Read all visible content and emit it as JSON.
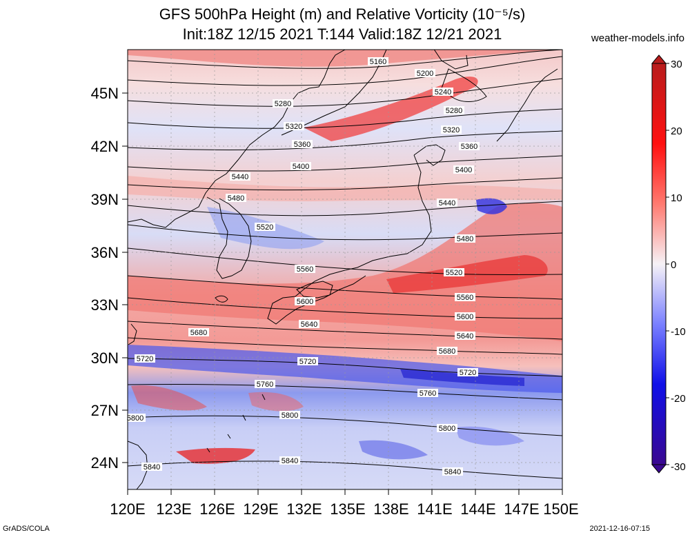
{
  "header": {
    "title_line1": "GFS 500hPa Height (m) and Relative Vorticity (10⁻⁵/s)",
    "title_line2": "Init:18Z 12/15 2021 T:144 Valid:18Z 12/21 2021",
    "site": "weather-models.info"
  },
  "footer": {
    "left": "GrADS/COLA",
    "right": "2021-12-16-07:15"
  },
  "map": {
    "lon_ticks": [
      "120E",
      "123E",
      "126E",
      "129E",
      "132E",
      "135E",
      "138E",
      "141E",
      "144E",
      "147E",
      "150E"
    ],
    "lat_ticks": [
      "45N",
      "42N",
      "39N",
      "36N",
      "33N",
      "30N",
      "27N",
      "24N"
    ],
    "contour_labels": [
      "5160",
      "5200",
      "5240",
      "5280",
      "5280",
      "5320",
      "5320",
      "5360",
      "5360",
      "5400",
      "5400",
      "5440",
      "5440",
      "5480",
      "5480",
      "5520",
      "5520",
      "5560",
      "5560",
      "5600",
      "5600",
      "5640",
      "5640",
      "5680",
      "5680",
      "5720",
      "5720",
      "5720",
      "5760",
      "5760",
      "5800",
      "5800",
      "5800",
      "5840",
      "5840",
      "5840"
    ]
  },
  "colorbar": {
    "ticks": [
      "30",
      "20",
      "10",
      "0",
      "-10",
      "-20",
      "-30"
    ],
    "colors": {
      "strong_pos": "#c0201e",
      "pos": "#ff5a50",
      "neutral": "#f4f0f4",
      "neg": "#4a52f0",
      "strong_neg": "#3a0a9a"
    }
  }
}
